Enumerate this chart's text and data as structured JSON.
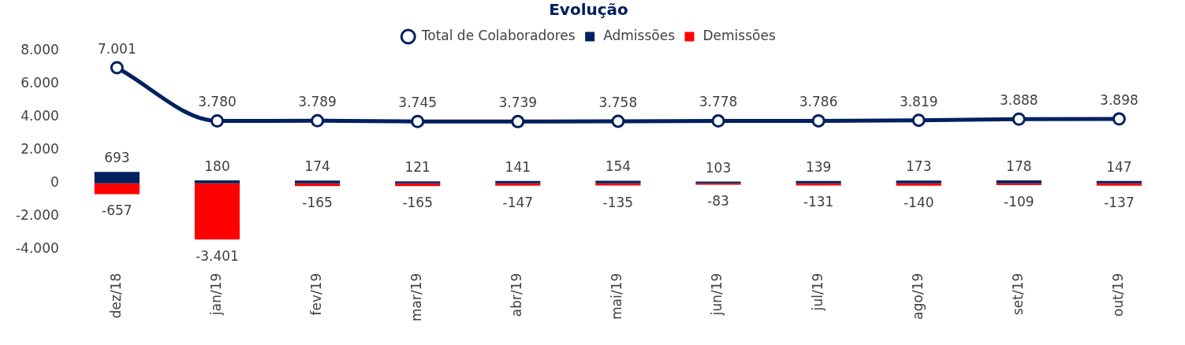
{
  "chart_data": {
    "type": "bar",
    "title": "Evolução",
    "categories": [
      "dez/18",
      "jan/19",
      "fev/19",
      "mar/19",
      "abr/19",
      "mai/19",
      "jun/19",
      "jul/19",
      "ago/19",
      "set/19",
      "out/19"
    ],
    "series": [
      {
        "name": "Admissões",
        "color": "#002060",
        "values": [
          693,
          180,
          174,
          121,
          141,
          154,
          103,
          139,
          173,
          178,
          147
        ],
        "value_labels": [
          "693",
          "180",
          "174",
          "121",
          "141",
          "154",
          "103",
          "139",
          "173",
          "178",
          "147"
        ]
      },
      {
        "name": "Demissões",
        "color": "#ff0000",
        "values": [
          -657,
          -3401,
          -165,
          -165,
          -147,
          -135,
          -83,
          -131,
          -140,
          -109,
          -137
        ],
        "value_labels": [
          "-657",
          "-3.401",
          "-165",
          "-165",
          "-147",
          "-135",
          "-83",
          "-131",
          "-140",
          "-109",
          "-137"
        ]
      },
      {
        "name": "Total de Colaboradores",
        "type": "line",
        "color": "#002060",
        "marker": "circle",
        "values": [
          7001,
          3780,
          3789,
          3745,
          3739,
          3758,
          3778,
          3786,
          3819,
          3888,
          3898
        ],
        "value_labels": [
          "7.001",
          "3.780",
          "3.789",
          "3.745",
          "3.739",
          "3.758",
          "3.778",
          "3.786",
          "3.819",
          "3.888",
          "3.898"
        ]
      }
    ],
    "stacked": true,
    "ylim": [
      -4000,
      8000
    ],
    "yticks": [
      {
        "value": -4000,
        "label": "-4.000"
      },
      {
        "value": -2000,
        "label": "-2.000"
      },
      {
        "value": 0,
        "label": "0"
      },
      {
        "value": 2000,
        "label": "2.000"
      },
      {
        "value": 4000,
        "label": "4.000"
      },
      {
        "value": 6000,
        "label": "6.000"
      },
      {
        "value": 8000,
        "label": "8.000"
      }
    ],
    "grid": false,
    "legend": "top"
  }
}
